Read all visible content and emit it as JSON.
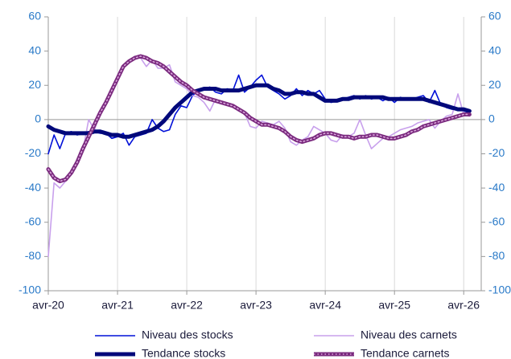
{
  "chart_data": {
    "type": "line",
    "categories": [
      "avr-20",
      null,
      null,
      null,
      null,
      null,
      null,
      null,
      null,
      null,
      null,
      null,
      "avr-21",
      null,
      null,
      null,
      null,
      null,
      null,
      null,
      null,
      null,
      null,
      null,
      "avr-22",
      null,
      null,
      null,
      null,
      null,
      null,
      null,
      null,
      null,
      null,
      null,
      "avr-23",
      null,
      null,
      null,
      null,
      null,
      null,
      null,
      null,
      null,
      null,
      null,
      "avr-24",
      null,
      null,
      null,
      null,
      null,
      null,
      null,
      null,
      null,
      null,
      null,
      "avr-25",
      null,
      null,
      null,
      null,
      null,
      null,
      null,
      null,
      null,
      null,
      null,
      "avr-26",
      null
    ],
    "ylim": [
      -100,
      60
    ],
    "yticks": [
      -100,
      -80,
      -60,
      -40,
      -20,
      0,
      20,
      40,
      60
    ],
    "y2lim": [
      -100,
      60
    ],
    "y2ticks": [
      -100,
      -80,
      -60,
      -40,
      -20,
      0,
      20,
      40,
      60
    ],
    "grid": "x",
    "series": [
      {
        "name": "Niveau des stocks",
        "color": "#0010d8",
        "line_width": 1.6,
        "values": [
          -20,
          -9,
          -17,
          -8,
          -7,
          -9,
          -8,
          -7,
          -7,
          -8,
          -8,
          -11,
          -10,
          -8,
          -15,
          -10,
          -9,
          -8,
          0,
          -5,
          -7,
          -6,
          3,
          8,
          7,
          14,
          17,
          18,
          19,
          16,
          15,
          18,
          17,
          26,
          16,
          19,
          23,
          26,
          19,
          17,
          15,
          12,
          14,
          18,
          14,
          17,
          15,
          17,
          12,
          10,
          11,
          12,
          13,
          14,
          12,
          14,
          12,
          13,
          11,
          13,
          10,
          13,
          12,
          12,
          13,
          14,
          10,
          17,
          9,
          7,
          6,
          6,
          5,
          4
        ]
      },
      {
        "name": "Niveau des carnets",
        "color": "#c8a0ec",
        "line_width": 1.6,
        "values": [
          -80,
          -37,
          -40,
          -36,
          -30,
          -24,
          -18,
          0,
          -6,
          4,
          9,
          17,
          25,
          32,
          34,
          37,
          36,
          31,
          35,
          30,
          30,
          32,
          22,
          20,
          18,
          14,
          13,
          10,
          5,
          12,
          10,
          9,
          8,
          5,
          4,
          -4,
          -5,
          -1,
          -2,
          -3,
          -1,
          -5,
          -13,
          -15,
          -12,
          -10,
          -4,
          -6,
          -8,
          -12,
          -13,
          -9,
          -10,
          -8,
          0,
          -9,
          -17,
          -14,
          -11,
          -10,
          -8,
          -6,
          -5,
          -4,
          -2,
          -1,
          0,
          -5,
          -1,
          2,
          3,
          15,
          3,
          2
        ]
      },
      {
        "name": "Tendance stocks",
        "color": "#00087a",
        "line_width": 5,
        "values": [
          -4,
          -6,
          -7,
          -8,
          -8,
          -8,
          -8,
          -8,
          -7,
          -7,
          -8,
          -9,
          -9,
          -10,
          -10,
          -9,
          -8,
          -7,
          -6,
          -4,
          -1,
          3,
          7,
          10,
          13,
          16,
          17,
          18,
          18,
          18,
          17,
          17,
          17,
          17,
          18,
          19,
          20,
          20,
          20,
          18,
          17,
          15,
          15,
          16,
          16,
          15,
          15,
          13,
          11,
          11,
          11,
          12,
          12,
          13,
          13,
          13,
          13,
          13,
          13,
          12,
          12,
          12,
          12,
          12,
          12,
          12,
          11,
          10,
          9,
          8,
          7,
          6,
          6,
          5
        ]
      },
      {
        "name": "Tendance carnets",
        "color": "#7a2a7e",
        "line_width": 5,
        "dotted": true,
        "values": [
          -29,
          -34,
          -36,
          -35,
          -31,
          -25,
          -17,
          -10,
          -3,
          4,
          10,
          17,
          24,
          31,
          34,
          36,
          37,
          36,
          34,
          33,
          31,
          28,
          25,
          22,
          20,
          17,
          15,
          13,
          12,
          11,
          10,
          9,
          8,
          6,
          4,
          1,
          -1,
          -3,
          -3,
          -4,
          -5,
          -7,
          -10,
          -12,
          -13,
          -12,
          -11,
          -9,
          -8,
          -8,
          -9,
          -10,
          -10,
          -11,
          -10,
          -10,
          -9,
          -9,
          -10,
          -11,
          -11,
          -10,
          -9,
          -7,
          -6,
          -4,
          -3,
          -2,
          -1,
          0,
          1,
          2,
          3,
          3
        ]
      }
    ]
  }
}
